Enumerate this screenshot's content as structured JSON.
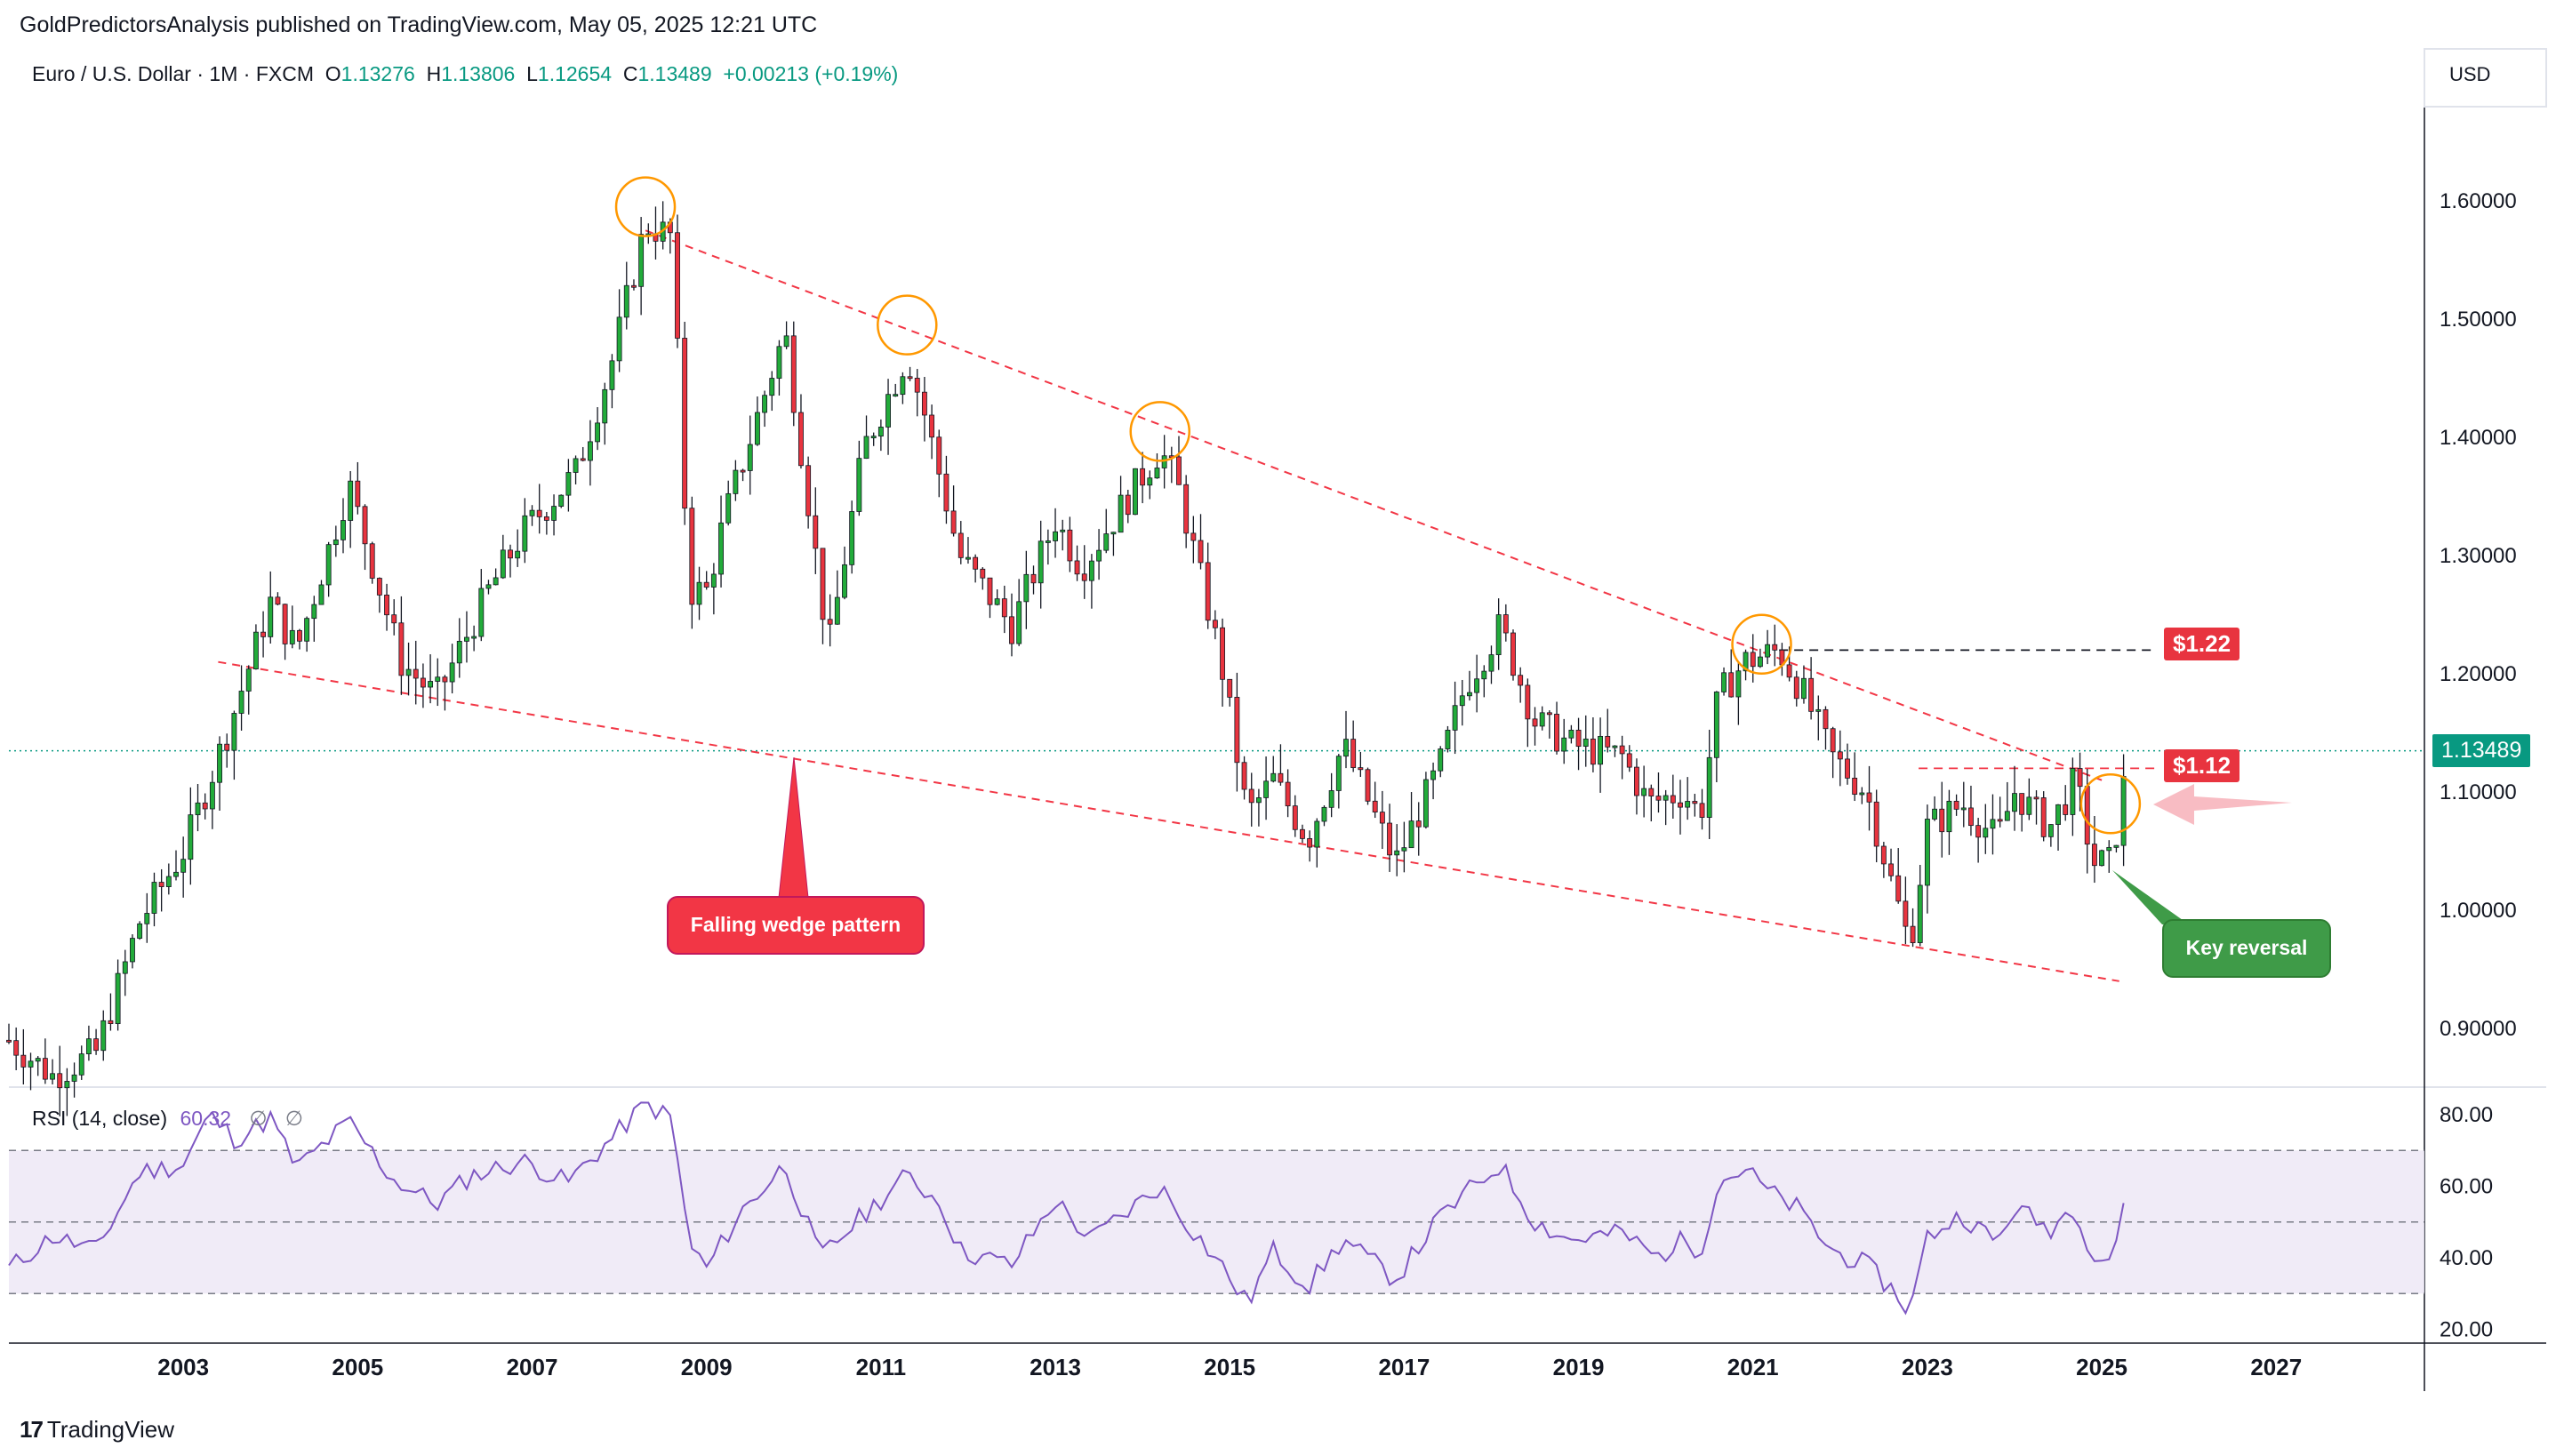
{
  "publisher": "GoldPredictorsAnalysis published on TradingView.com, May 05, 2025 12:21 UTC",
  "symbol": {
    "name": "Euro / U.S. Dollar",
    "interval": "1M",
    "exchange": "FXCM",
    "open_label": "O",
    "open": "1.13276",
    "high_label": "H",
    "high": "1.13806",
    "low_label": "L",
    "low": "1.12654",
    "close_label": "C",
    "close": "1.13489",
    "change": "+0.00213 (+0.19%)"
  },
  "currency": "USD",
  "current_price_label": "1.13489",
  "rsi_header": {
    "label": "RSI (14, close)",
    "value": "60.32",
    "na1": "∅",
    "na2": "∅"
  },
  "annotations": {
    "level_122": "$1.22",
    "level_112": "$1.12",
    "wedge_label": "Falling wedge pattern",
    "reversal_label": "Key reversal"
  },
  "logo_text": "TradingView",
  "colors": {
    "up": "#22ab3a",
    "down": "#e8343f",
    "rsi_line": "#7e57c2",
    "rsi_band": "#ede7f6",
    "trend": "#f23645",
    "highlight_circle": "#ff9800",
    "price_tag": "#089981",
    "level_tag": "#e8343f",
    "wedge_callout": "#f23645",
    "reversal_callout": "#3f9b48"
  },
  "chart_data": [
    {
      "type": "candlestick",
      "title": "Euro / U.S. Dollar · 1M · FXCM",
      "x_ticks": [
        "2003",
        "2005",
        "2007",
        "2009",
        "2011",
        "2013",
        "2015",
        "2017",
        "2019",
        "2021",
        "2023",
        "2025",
        "2027"
      ],
      "y_ticks": [
        "1.60000",
        "1.50000",
        "1.40000",
        "1.30000",
        "1.20000",
        "1.10000",
        "1.00000",
        "0.90000"
      ],
      "ylim": [
        0.85,
        1.65
      ],
      "xlim": [
        2001.0,
        2028.7
      ],
      "monthly_close_anchors": [
        [
          2001.0,
          0.89
        ],
        [
          2001.5,
          0.86
        ],
        [
          2002.0,
          0.88
        ],
        [
          2002.5,
          0.99
        ],
        [
          2003.0,
          1.05
        ],
        [
          2003.5,
          1.15
        ],
        [
          2004.0,
          1.26
        ],
        [
          2004.3,
          1.22
        ],
        [
          2004.9,
          1.36
        ],
        [
          2005.5,
          1.21
        ],
        [
          2005.9,
          1.18
        ],
        [
          2006.5,
          1.27
        ],
        [
          2006.9,
          1.32
        ],
        [
          2007.5,
          1.37
        ],
        [
          2007.9,
          1.46
        ],
        [
          2008.3,
          1.58
        ],
        [
          2008.6,
          1.57
        ],
        [
          2008.8,
          1.27
        ],
        [
          2009.0,
          1.27
        ],
        [
          2009.2,
          1.33
        ],
        [
          2009.9,
          1.49
        ],
        [
          2010.4,
          1.22
        ],
        [
          2010.8,
          1.39
        ],
        [
          2011.3,
          1.47
        ],
        [
          2011.5,
          1.42
        ],
        [
          2011.9,
          1.3
        ],
        [
          2012.5,
          1.24
        ],
        [
          2013.0,
          1.33
        ],
        [
          2013.3,
          1.29
        ],
        [
          2014.2,
          1.39
        ],
        [
          2014.4,
          1.36
        ],
        [
          2014.9,
          1.21
        ],
        [
          2015.2,
          1.08
        ],
        [
          2015.5,
          1.11
        ],
        [
          2015.9,
          1.06
        ],
        [
          2016.3,
          1.14
        ],
        [
          2016.9,
          1.04
        ],
        [
          2017.4,
          1.12
        ],
        [
          2017.7,
          1.19
        ],
        [
          2018.1,
          1.24
        ],
        [
          2018.5,
          1.16
        ],
        [
          2018.9,
          1.14
        ],
        [
          2019.5,
          1.13
        ],
        [
          2019.8,
          1.09
        ],
        [
          2020.2,
          1.1
        ],
        [
          2020.4,
          1.08
        ],
        [
          2020.6,
          1.18
        ],
        [
          2020.9,
          1.21
        ],
        [
          2021.3,
          1.22
        ],
        [
          2021.6,
          1.18
        ],
        [
          2021.9,
          1.13
        ],
        [
          2022.3,
          1.1
        ],
        [
          2022.6,
          1.02
        ],
        [
          2022.8,
          0.97
        ],
        [
          2023.0,
          1.07
        ],
        [
          2023.4,
          1.09
        ],
        [
          2023.8,
          1.06
        ],
        [
          2024.0,
          1.1
        ],
        [
          2024.4,
          1.07
        ],
        [
          2024.7,
          1.11
        ],
        [
          2024.9,
          1.04
        ],
        [
          2025.1,
          1.04
        ],
        [
          2025.2,
          1.08
        ],
        [
          2025.3,
          1.13
        ],
        [
          2025.33,
          1.13489
        ]
      ],
      "current_price": 1.13489,
      "highlight_circles": [
        [
          2008.3,
          1.595
        ],
        [
          2011.3,
          1.495
        ],
        [
          2014.2,
          1.405
        ],
        [
          2021.1,
          1.225
        ],
        [
          2025.1,
          1.09
        ]
      ],
      "upper_trendline": [
        [
          2008.3,
          1.575
        ],
        [
          2025.0,
          1.11
        ]
      ],
      "lower_trendline": [
        [
          2003.4,
          1.21
        ],
        [
          2025.2,
          0.94
        ]
      ],
      "resistance_levels": [
        1.22,
        1.12
      ]
    },
    {
      "type": "line",
      "series": [
        {
          "name": "RSI (14, close)",
          "value_last": 60.32
        }
      ],
      "y_ticks": [
        "80.00",
        "60.00",
        "40.00",
        "20.00"
      ],
      "ylim": [
        18,
        86
      ],
      "bands": [
        30,
        50,
        70
      ],
      "anchors": [
        [
          2001.0,
          37
        ],
        [
          2001.5,
          46
        ],
        [
          2002.0,
          42
        ],
        [
          2002.5,
          64
        ],
        [
          2003.0,
          66
        ],
        [
          2003.3,
          80
        ],
        [
          2003.6,
          73
        ],
        [
          2004.0,
          79
        ],
        [
          2004.3,
          65
        ],
        [
          2004.9,
          78
        ],
        [
          2005.4,
          62
        ],
        [
          2005.9,
          55
        ],
        [
          2006.3,
          63
        ],
        [
          2006.9,
          67
        ],
        [
          2007.4,
          61
        ],
        [
          2007.9,
          73
        ],
        [
          2008.3,
          83
        ],
        [
          2008.6,
          79
        ],
        [
          2008.8,
          44
        ],
        [
          2009.0,
          37
        ],
        [
          2009.4,
          53
        ],
        [
          2009.9,
          66
        ],
        [
          2010.3,
          40
        ],
        [
          2010.8,
          52
        ],
        [
          2011.3,
          63
        ],
        [
          2011.7,
          55
        ],
        [
          2011.9,
          42
        ],
        [
          2012.5,
          38
        ],
        [
          2013.0,
          56
        ],
        [
          2013.4,
          45
        ],
        [
          2014.2,
          60
        ],
        [
          2014.5,
          50
        ],
        [
          2014.9,
          38
        ],
        [
          2015.2,
          27
        ],
        [
          2015.5,
          42
        ],
        [
          2015.9,
          32
        ],
        [
          2016.3,
          45
        ],
        [
          2016.9,
          34
        ],
        [
          2017.4,
          51
        ],
        [
          2017.8,
          60
        ],
        [
          2018.1,
          66
        ],
        [
          2018.5,
          50
        ],
        [
          2018.9,
          45
        ],
        [
          2019.5,
          47
        ],
        [
          2019.9,
          40
        ],
        [
          2020.2,
          45
        ],
        [
          2020.4,
          42
        ],
        [
          2020.6,
          61
        ],
        [
          2020.9,
          65
        ],
        [
          2021.2,
          58
        ],
        [
          2021.5,
          54
        ],
        [
          2021.9,
          42
        ],
        [
          2022.3,
          38
        ],
        [
          2022.6,
          31
        ],
        [
          2022.8,
          25
        ],
        [
          2023.0,
          46
        ],
        [
          2023.4,
          52
        ],
        [
          2023.8,
          44
        ],
        [
          2024.0,
          54
        ],
        [
          2024.4,
          48
        ],
        [
          2024.7,
          55
        ],
        [
          2024.9,
          40
        ],
        [
          2025.1,
          40
        ],
        [
          2025.2,
          48
        ],
        [
          2025.33,
          60.32
        ]
      ]
    }
  ]
}
